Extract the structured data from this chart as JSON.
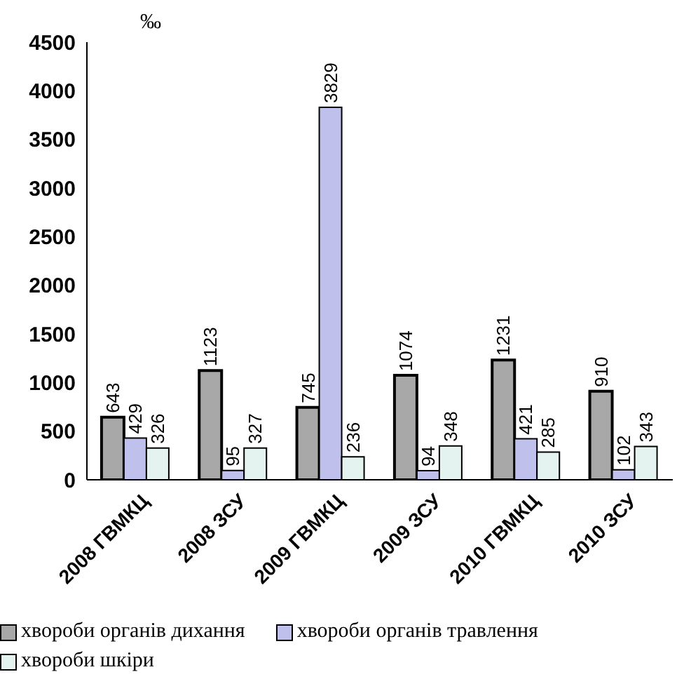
{
  "chart_data": {
    "type": "bar",
    "ylabel": "‰",
    "categories": [
      "2008 ГВМКЦ",
      "2008 ЗСУ",
      "2009 ГВМКЦ",
      "2009 ЗСУ",
      "2010 ГВМКЦ",
      "2010 ЗСУ"
    ],
    "series": [
      {
        "name": "хвороби органів дихання",
        "color": "#a8a8a8",
        "values": [
          643,
          1123,
          745,
          1074,
          1231,
          910
        ]
      },
      {
        "name": "хвороби органів травлення",
        "color": "#c0c0ec",
        "values": [
          429,
          95,
          3829,
          94,
          421,
          102
        ]
      },
      {
        "name": "хвороби шкіри",
        "color": "#e4f2f0",
        "values": [
          326,
          327,
          236,
          348,
          285,
          343
        ]
      }
    ],
    "ylim": [
      0,
      4500
    ],
    "yticks": [
      0,
      500,
      1000,
      1500,
      2000,
      2500,
      3000,
      3500,
      4000,
      4500
    ],
    "grid": false,
    "legend": "bottom",
    "data_labels": true
  }
}
